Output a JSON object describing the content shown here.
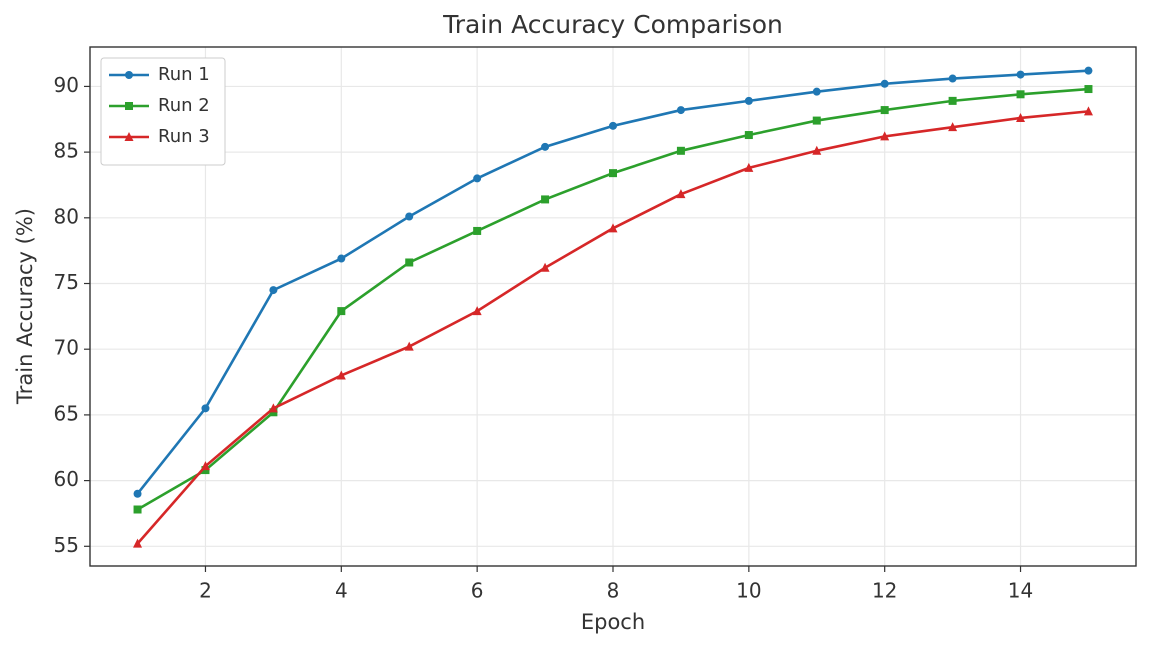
{
  "chart_data": {
    "type": "line",
    "title": "Train Accuracy Comparison",
    "x_label": "Epoch",
    "y_label": "Train Accuracy (%)",
    "x": [
      1,
      2,
      3,
      4,
      5,
      6,
      7,
      8,
      9,
      10,
      11,
      12,
      13,
      14,
      15
    ],
    "series": [
      {
        "name": "Run 1",
        "color": "#1f77b4",
        "marker": "circle",
        "values": [
          59.0,
          65.5,
          74.5,
          76.9,
          80.1,
          83.0,
          85.4,
          87.0,
          88.2,
          88.9,
          89.6,
          90.2,
          90.6,
          90.9,
          91.2
        ]
      },
      {
        "name": "Run 2",
        "color": "#2ca02c",
        "marker": "square",
        "values": [
          57.8,
          60.8,
          65.2,
          72.9,
          76.6,
          79.0,
          81.4,
          83.4,
          85.1,
          86.3,
          87.4,
          88.2,
          88.9,
          89.4,
          89.8
        ]
      },
      {
        "name": "Run 3",
        "color": "#d62728",
        "marker": "triangle",
        "values": [
          55.2,
          61.1,
          65.5,
          68.0,
          70.2,
          72.9,
          76.2,
          79.2,
          81.8,
          83.8,
          85.1,
          86.2,
          86.9,
          87.6,
          88.1
        ]
      }
    ],
    "xlim": [
      0.3,
      15.7
    ],
    "ylim": [
      53.5,
      93.0
    ],
    "xticks": [
      2,
      4,
      6,
      8,
      10,
      12,
      14
    ],
    "yticks": [
      55,
      60,
      65,
      70,
      75,
      80,
      85,
      90
    ],
    "grid": true,
    "legend": "upper-left"
  }
}
